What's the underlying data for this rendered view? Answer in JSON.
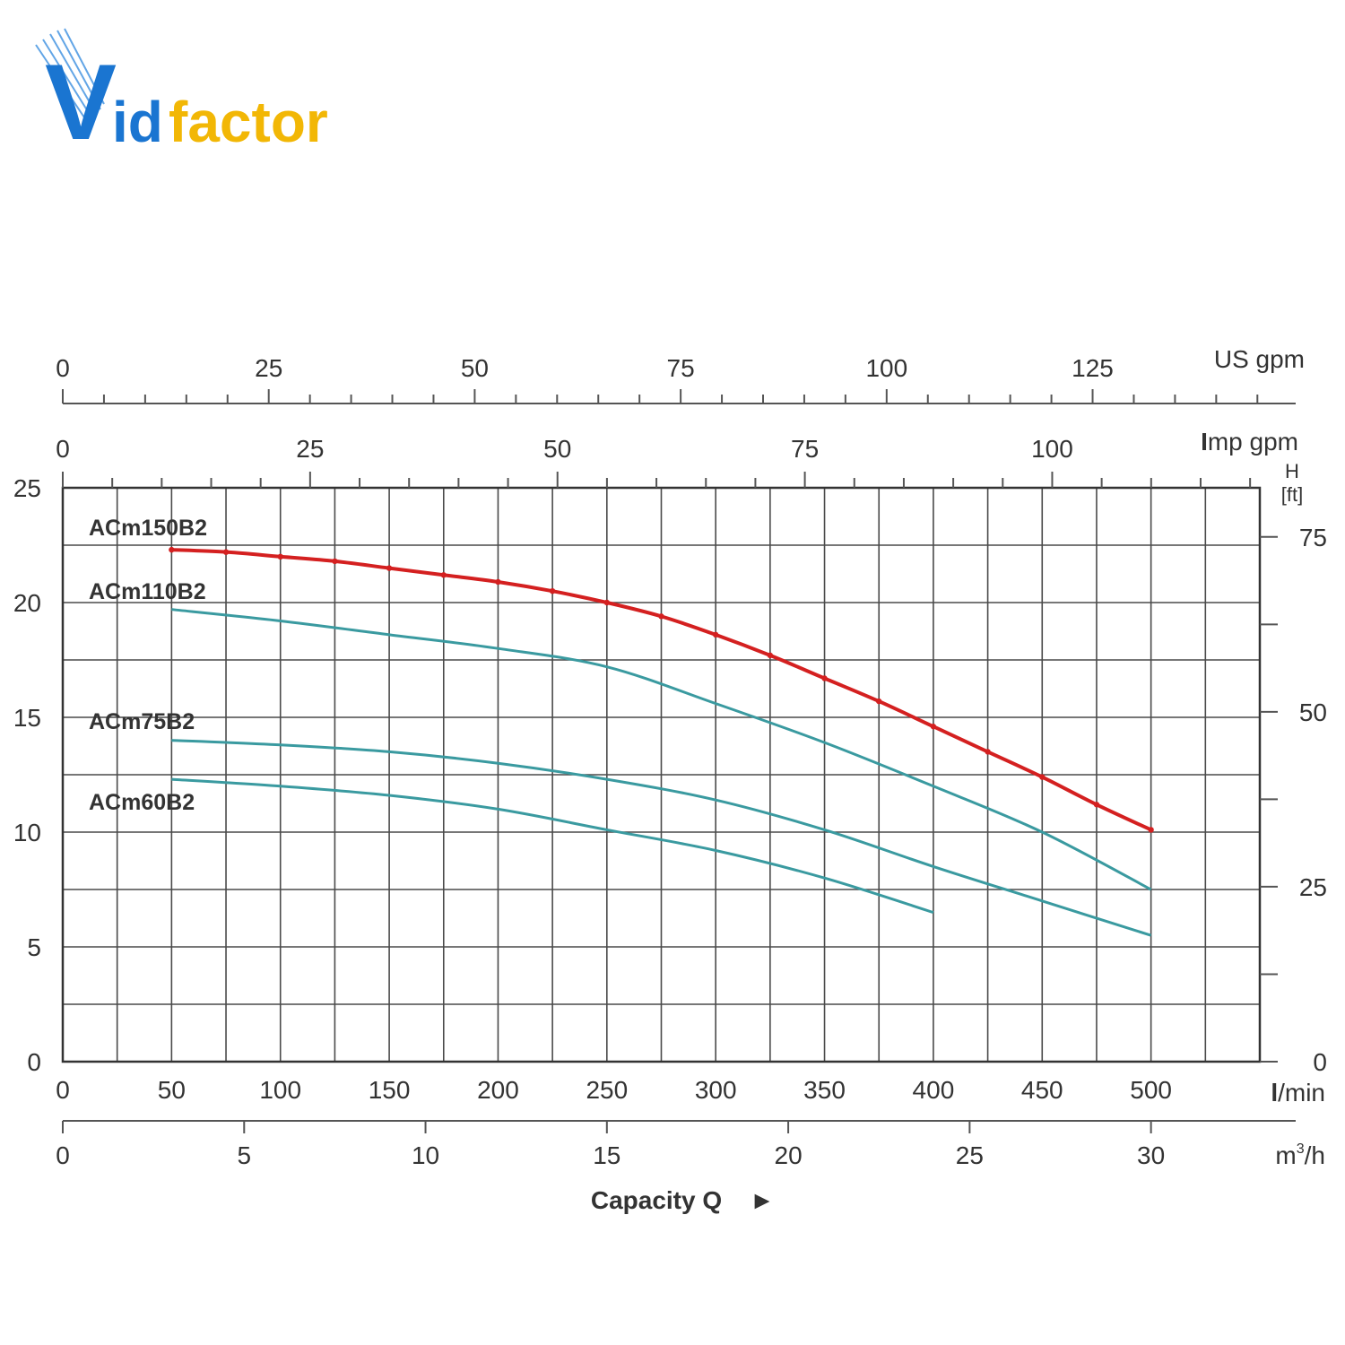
{
  "logo": {
    "letter_v": "V",
    "part_id": "id",
    "part_factor": "factor",
    "colors": {
      "blue": "#1a75d1",
      "yellow": "#f2b705"
    }
  },
  "chart_data": {
    "type": "line",
    "title": "",
    "xlabel": "Capacity Q",
    "ylabel": "",
    "x_unit": "l/min",
    "xlim": [
      0,
      550
    ],
    "ylim": [
      0,
      25
    ],
    "grid": true,
    "x_ticks": [
      0,
      50,
      100,
      150,
      200,
      250,
      300,
      350,
      400,
      450,
      500
    ],
    "y_ticks": [
      0,
      5,
      10,
      15,
      20,
      25
    ],
    "secondary_axes": {
      "us_gpm": {
        "unit": "US gpm",
        "ticks": [
          0,
          25,
          50,
          75,
          100,
          125
        ]
      },
      "imp_gpm": {
        "unit_initial": "I",
        "unit_rest": "mp gpm",
        "ticks": [
          0,
          25,
          50,
          75,
          100
        ]
      },
      "m3h": {
        "unit_base": "m",
        "unit_sup": "3",
        "unit_rest": "/h",
        "ticks": [
          0,
          5,
          10,
          15,
          20,
          25,
          30
        ]
      },
      "feet": {
        "unit_h": "H",
        "unit_ft": "[ft]",
        "ticks": [
          0,
          25,
          50,
          75
        ]
      }
    },
    "x_unit_label": {
      "initial": "l",
      "rest": "/min"
    },
    "capacity_arrow": "►",
    "series": [
      {
        "name": "ACm150B2",
        "color": "#d42020",
        "x": [
          50,
          75,
          100,
          125,
          150,
          175,
          200,
          225,
          250,
          275,
          300,
          325,
          350,
          375,
          400,
          425,
          450,
          475,
          500
        ],
        "y": [
          22.3,
          22.2,
          22.0,
          21.8,
          21.5,
          21.2,
          20.9,
          20.5,
          20.0,
          19.4,
          18.6,
          17.7,
          16.7,
          15.7,
          14.6,
          13.5,
          12.4,
          11.2,
          10.1
        ]
      },
      {
        "name": "ACm110B2",
        "color": "#3a9aa0",
        "x": [
          50,
          100,
          150,
          200,
          250,
          300,
          350,
          400,
          450,
          500
        ],
        "y": [
          19.7,
          19.2,
          18.6,
          18.0,
          17.2,
          15.6,
          13.9,
          12.0,
          10.0,
          7.5
        ]
      },
      {
        "name": "ACm75B2",
        "color": "#3a9aa0",
        "x": [
          50,
          100,
          150,
          200,
          250,
          300,
          350,
          400,
          450,
          500
        ],
        "y": [
          14.0,
          13.8,
          13.5,
          13.0,
          12.3,
          11.4,
          10.1,
          8.5,
          7.0,
          5.5
        ]
      },
      {
        "name": "ACm60B2",
        "color": "#3a9aa0",
        "x": [
          50,
          100,
          150,
          200,
          250,
          300,
          350,
          400
        ],
        "y": [
          12.3,
          12.0,
          11.6,
          11.0,
          10.1,
          9.2,
          8.0,
          6.5
        ]
      }
    ]
  }
}
